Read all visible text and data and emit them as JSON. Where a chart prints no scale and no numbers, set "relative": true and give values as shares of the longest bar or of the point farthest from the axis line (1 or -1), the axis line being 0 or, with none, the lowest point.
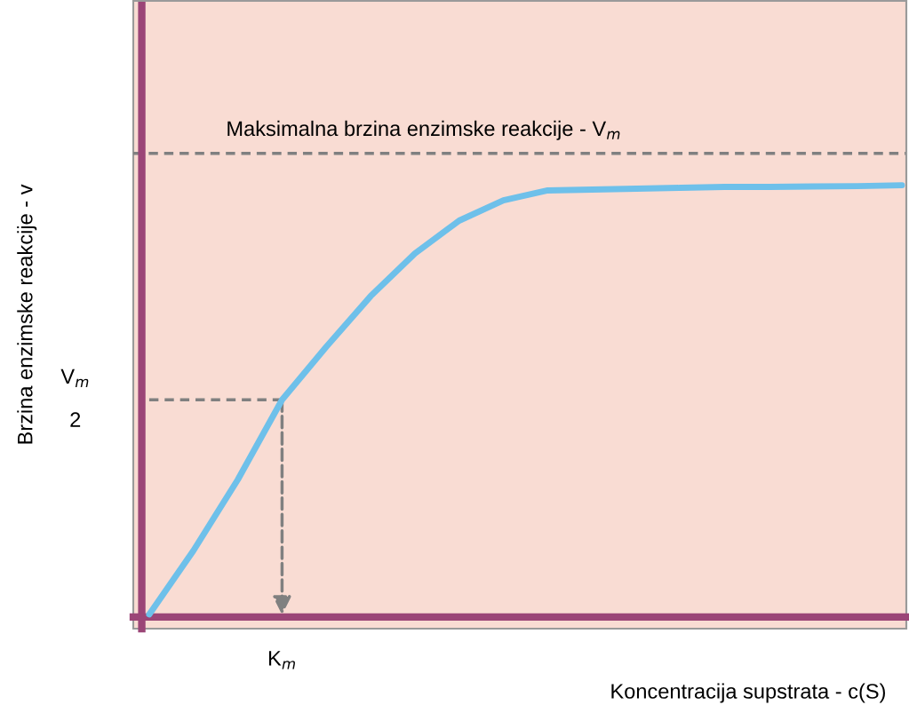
{
  "chart_data": {
    "type": "line",
    "relative": true,
    "categories": [
      null,
      null,
      null,
      null,
      null,
      null,
      null,
      null,
      null,
      null,
      null,
      null,
      null,
      null,
      null,
      null,
      null,
      null
    ],
    "xlabel": "Koncentracija supstrata - c(S)",
    "ylabel": "Brzina enzimske reakcije - v",
    "series": [
      {
        "color": "#6ec0ea",
        "values": [
          0.006,
          0.154,
          0.318,
          0.503,
          0.626,
          0.743,
          0.842,
          0.918,
          0.965,
          0.988,
          0.99,
          0.992,
          0.994,
          0.996,
          0.996,
          0.997,
          0.998,
          1.0
        ]
      },
      {
        "type": "line",
        "values": [
          0.503,
          0.503,
          0.503,
          0.503,
          null,
          null,
          null,
          null,
          null,
          null,
          null,
          null,
          null,
          null,
          null,
          null,
          null,
          null
        ],
        "color": "#808080",
        "line_style": "dashed"
      }
    ],
    "ref_lines": [
      {
        "axis": "y",
        "value": 1.074,
        "label": "Maksimalna brzina enzimske reakcije - V$_{m}$",
        "color": "#808080",
        "line_style": "dashed"
      }
    ],
    "annotations": [
      "V$_{m}$",
      "2",
      "K$_{m}$"
    ]
  }
}
